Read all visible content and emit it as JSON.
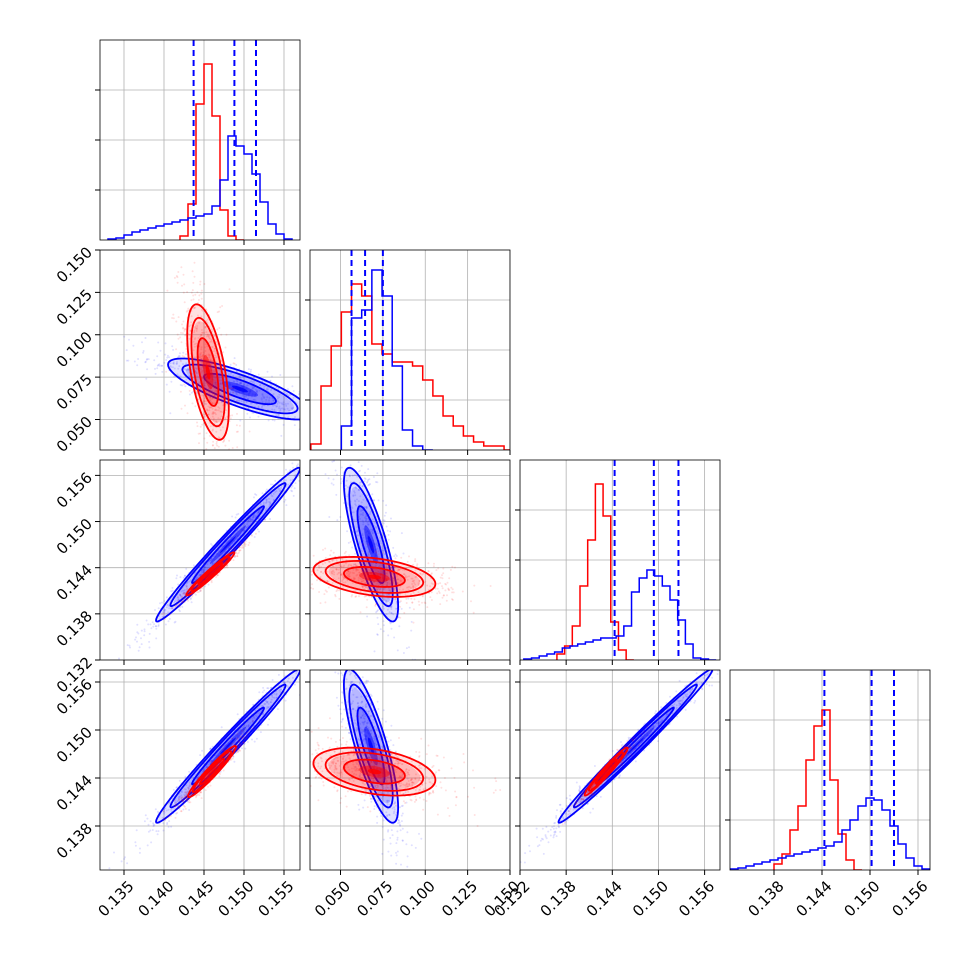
{
  "chart_data": {
    "type": "corner",
    "title": "",
    "colors": {
      "red": "#ff0000",
      "blue": "#0000ff",
      "grid": "#b0b0b0"
    },
    "grid": true,
    "legend": "none",
    "variables": [
      {
        "range": [
          0.132,
          0.157
        ],
        "ticks": [
          "0.135",
          "0.140",
          "0.145",
          "0.150",
          "0.155"
        ],
        "tick_values": [
          0.135,
          0.14,
          0.145,
          0.15,
          0.155
        ]
      },
      {
        "range": [
          0.032,
          0.15
        ],
        "ticks": [
          "0.050",
          "0.075",
          "0.100",
          "0.125",
          "0.150"
        ],
        "tick_values": [
          0.05,
          0.075,
          0.1,
          0.125,
          0.15
        ]
      },
      {
        "range": [
          0.132,
          0.158
        ],
        "ticks": [
          "0.132",
          "0.138",
          "0.144",
          "0.150",
          "0.156"
        ],
        "tick_values": [
          0.132,
          0.138,
          0.144,
          0.15,
          0.156
        ]
      },
      {
        "range": [
          0.1325,
          0.1575
        ],
        "ticks": [
          "0.138",
          "0.144",
          "0.150",
          "0.156"
        ],
        "tick_values": [
          0.138,
          0.144,
          0.15,
          0.156
        ]
      }
    ],
    "quantile_lines": [
      [
        0.1437,
        0.1488,
        0.1515
      ],
      [
        0.0565,
        0.0645,
        0.075
      ],
      [
        0.1443,
        0.1494,
        0.1526
      ],
      [
        0.1443,
        0.1502,
        0.153
      ]
    ],
    "histograms": [
      {
        "red": {
          "x": [
            0.1425,
            0.1435,
            0.1445,
            0.1455,
            0.1465,
            0.1475,
            0.1485,
            0.1495
          ],
          "y": [
            0.02,
            0.18,
            0.68,
            0.88,
            0.62,
            0.15,
            0.02,
            0.0
          ]
        },
        "blue": {
          "x": [
            0.1335,
            0.1345,
            0.1355,
            0.1365,
            0.1375,
            0.1385,
            0.1395,
            0.1405,
            0.1415,
            0.1425,
            0.1435,
            0.1445,
            0.1455,
            0.1465,
            0.1475,
            0.1485,
            0.1495,
            0.1505,
            0.1515,
            0.1525,
            0.1535,
            0.1545,
            0.1555
          ],
          "y": [
            0.005,
            0.01,
            0.025,
            0.04,
            0.05,
            0.06,
            0.07,
            0.08,
            0.09,
            0.1,
            0.11,
            0.12,
            0.13,
            0.17,
            0.3,
            0.52,
            0.47,
            0.43,
            0.33,
            0.19,
            0.08,
            0.03,
            0.005
          ]
        }
      },
      {
        "red": {
          "x": [
            0.0355,
            0.0415,
            0.0475,
            0.0535,
            0.0595,
            0.0655,
            0.0715,
            0.0775,
            0.0835,
            0.0895,
            0.0955,
            0.1015,
            0.1075,
            0.1135,
            0.1195,
            0.1255,
            0.1315,
            0.1375,
            0.1435,
            0.1495
          ],
          "y": [
            0.03,
            0.32,
            0.52,
            0.69,
            0.83,
            0.77,
            0.53,
            0.48,
            0.44,
            0.44,
            0.42,
            0.35,
            0.27,
            0.17,
            0.12,
            0.07,
            0.04,
            0.02,
            0.02,
            0.0
          ]
        },
        "blue": {
          "x": [
            0.0535,
            0.0595,
            0.0655,
            0.0715,
            0.0775,
            0.0835,
            0.0895,
            0.0955,
            0.1015
          ],
          "y": [
            0.12,
            0.66,
            0.7,
            0.9,
            0.77,
            0.42,
            0.1,
            0.02,
            0.0
          ]
        }
      },
      {
        "red": {
          "x": [
            0.1373,
            0.1383,
            0.1393,
            0.1403,
            0.1413,
            0.1423,
            0.1433,
            0.1443,
            0.1453,
            0.1463
          ],
          "y": [
            0.03,
            0.07,
            0.17,
            0.37,
            0.6,
            0.88,
            0.72,
            0.19,
            0.05,
            0.0
          ]
        },
        "blue": {
          "x": [
            0.133,
            0.134,
            0.135,
            0.136,
            0.137,
            0.138,
            0.139,
            0.14,
            0.141,
            0.142,
            0.143,
            0.144,
            0.145,
            0.146,
            0.147,
            0.148,
            0.149,
            0.15,
            0.151,
            0.152,
            0.153,
            0.154,
            0.155,
            0.156,
            0.157
          ],
          "y": [
            0.005,
            0.01,
            0.02,
            0.03,
            0.04,
            0.06,
            0.07,
            0.08,
            0.09,
            0.1,
            0.11,
            0.11,
            0.12,
            0.17,
            0.34,
            0.41,
            0.45,
            0.42,
            0.37,
            0.3,
            0.2,
            0.08,
            0.01,
            0.005,
            0.0
          ]
        }
      },
      {
        "red": {
          "x": [
            0.1385,
            0.1395,
            0.1405,
            0.1415,
            0.1425,
            0.1435,
            0.1445,
            0.1455,
            0.1465,
            0.1475,
            0.1485
          ],
          "y": [
            0.03,
            0.08,
            0.2,
            0.32,
            0.55,
            0.72,
            0.8,
            0.45,
            0.18,
            0.05,
            0.0
          ]
        },
        "blue": {
          "x": [
            0.133,
            0.134,
            0.135,
            0.136,
            0.137,
            0.138,
            0.139,
            0.14,
            0.141,
            0.142,
            0.143,
            0.144,
            0.145,
            0.146,
            0.147,
            0.148,
            0.149,
            0.15,
            0.151,
            0.152,
            0.153,
            0.154,
            0.155,
            0.156,
            0.157
          ],
          "y": [
            0.005,
            0.01,
            0.02,
            0.03,
            0.04,
            0.05,
            0.06,
            0.07,
            0.08,
            0.09,
            0.1,
            0.11,
            0.12,
            0.14,
            0.2,
            0.25,
            0.32,
            0.36,
            0.35,
            0.3,
            0.22,
            0.13,
            0.06,
            0.02,
            0.005
          ]
        }
      }
    ],
    "pairs": [
      {
        "row": 1,
        "col": 0,
        "red": {
          "center": [
            0.1455,
            0.078
          ],
          "sigma": [
            0.0013,
            0.02
          ],
          "corr": -0.55
        },
        "blue": {
          "center": [
            0.1495,
            0.068
          ],
          "sigma": [
            0.0045,
            0.009
          ],
          "corr": -0.8
        }
      },
      {
        "row": 2,
        "col": 0,
        "red": {
          "center": [
            0.1458,
            0.1432
          ],
          "sigma": [
            0.0015,
            0.0014
          ],
          "corr": 0.97
        },
        "blue": {
          "center": [
            0.148,
            0.147
          ],
          "sigma": [
            0.0045,
            0.005
          ],
          "corr": 0.985
        }
      },
      {
        "row": 2,
        "col": 1,
        "red": {
          "center": [
            0.07,
            0.1428
          ],
          "sigma": [
            0.018,
            0.0013
          ],
          "corr": -0.35
        },
        "blue": {
          "center": [
            0.068,
            0.147
          ],
          "sigma": [
            0.008,
            0.005
          ],
          "corr": -0.8
        }
      },
      {
        "row": 3,
        "col": 0,
        "red": {
          "center": [
            0.146,
            0.1448
          ],
          "sigma": [
            0.0015,
            0.0016
          ],
          "corr": 0.96
        },
        "blue": {
          "center": [
            0.148,
            0.148
          ],
          "sigma": [
            0.0045,
            0.0048
          ],
          "corr": 0.985
        }
      },
      {
        "row": 3,
        "col": 1,
        "red": {
          "center": [
            0.07,
            0.1448
          ],
          "sigma": [
            0.018,
            0.0015
          ],
          "corr": -0.35
        },
        "blue": {
          "center": [
            0.068,
            0.148
          ],
          "sigma": [
            0.008,
            0.0048
          ],
          "corr": -0.8
        }
      },
      {
        "row": 3,
        "col": 2,
        "red": {
          "center": [
            0.1432,
            0.1448
          ],
          "sigma": [
            0.0014,
            0.0015
          ],
          "corr": 0.97
        },
        "blue": {
          "center": [
            0.147,
            0.148
          ],
          "sigma": [
            0.005,
            0.0048
          ],
          "corr": 0.99
        }
      }
    ]
  }
}
